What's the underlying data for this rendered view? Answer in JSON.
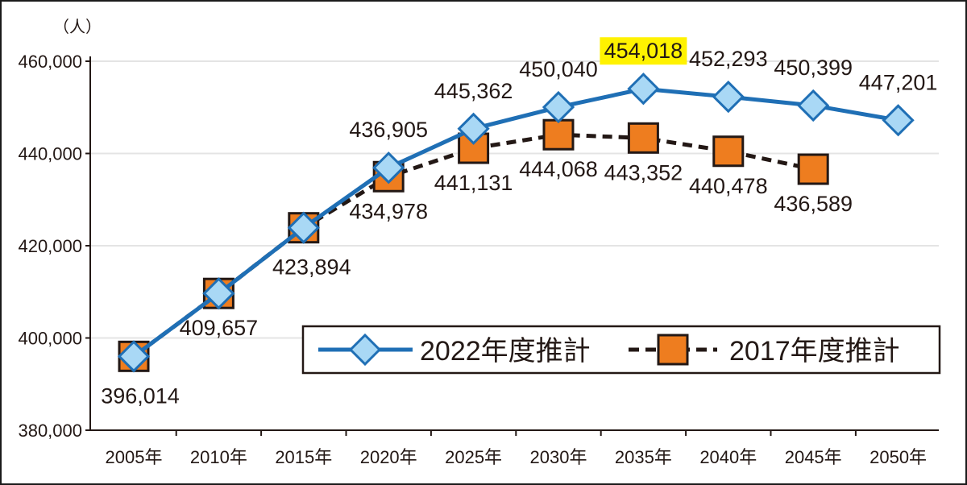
{
  "chart_data": {
    "type": "line",
    "unit_label": "（人）",
    "categories": [
      "2005年",
      "2010年",
      "2015年",
      "2020年",
      "2025年",
      "2030年",
      "2035年",
      "2040年",
      "2045年",
      "2050年"
    ],
    "ylim": [
      380000,
      460000
    ],
    "yticks": [
      "380,000",
      "400,000",
      "420,000",
      "440,000",
      "460,000"
    ],
    "ytick_values": [
      380000,
      400000,
      420000,
      440000,
      460000
    ],
    "grid": true,
    "legend_position": "bottom-right",
    "series": [
      {
        "name": "2022年度推計",
        "marker": "diamond",
        "line_style": "solid",
        "color": "#1f6fb5",
        "marker_color": "#a9d8f5",
        "values": [
          396014,
          409657,
          423894,
          436905,
          445362,
          450040,
          454018,
          452293,
          450399,
          447201
        ],
        "labels": [
          "",
          "",
          "",
          "436,905",
          "445,362",
          "450,040",
          "454,018",
          "452,293",
          "450,399",
          "447,201"
        ],
        "highlight_label": "454,018",
        "highlight_color": "#fff200"
      },
      {
        "name": "2017年度推計",
        "marker": "square",
        "line_style": "dashed",
        "color": "#231815",
        "marker_color": "#ee7d1f",
        "values": [
          396014,
          409657,
          423894,
          434978,
          441131,
          444068,
          443352,
          440478,
          436589,
          null
        ],
        "labels": [
          "396,014",
          "409,657",
          "423,894",
          "434,978",
          "441,131",
          "444,068",
          "443,352",
          "440,478",
          "436,589",
          ""
        ]
      }
    ]
  }
}
